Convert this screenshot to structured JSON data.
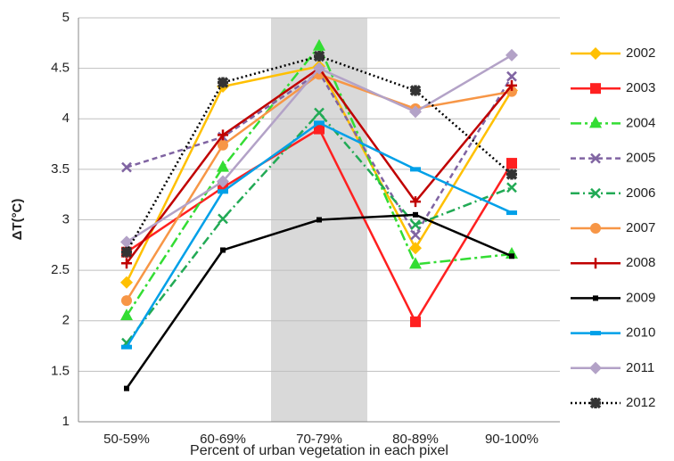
{
  "chart_data": {
    "type": "line",
    "x_label": "Percent of urban vegetation in each pixel",
    "y_label": "ΔT(°C)",
    "categories": [
      "50-59%",
      "60-69%",
      "70-79%",
      "80-89%",
      "90-100%"
    ],
    "highlight_index": 2,
    "ylim": [
      1,
      5
    ],
    "yticks": [
      1,
      1.5,
      2,
      2.5,
      3,
      3.5,
      4,
      4.5,
      5
    ],
    "grid": true,
    "legend": "right",
    "series": [
      {
        "name": "2002",
        "color": "#FFC000",
        "marker": "diamond",
        "dash": "",
        "values": [
          2.38,
          4.32,
          4.52,
          2.72,
          4.28
        ]
      },
      {
        "name": "2003",
        "color": "#FF2020",
        "marker": "square",
        "dash": "",
        "values": [
          2.68,
          3.32,
          3.9,
          1.99,
          3.56
        ]
      },
      {
        "name": "2004",
        "color": "#33DD33",
        "marker": "triangle",
        "dash": "12 4 3 4",
        "values": [
          2.05,
          3.52,
          4.72,
          2.56,
          2.66
        ]
      },
      {
        "name": "2005",
        "color": "#8064A2",
        "marker": "x",
        "dash": "6 4",
        "values": [
          3.52,
          3.82,
          4.46,
          2.85,
          4.42
        ]
      },
      {
        "name": "2006",
        "color": "#22AA55",
        "marker": "x",
        "dash": "10 4 2 4",
        "values": [
          1.78,
          3.01,
          4.06,
          2.95,
          3.32
        ]
      },
      {
        "name": "2007",
        "color": "#F79646",
        "marker": "circle",
        "dash": "",
        "values": [
          2.2,
          3.74,
          4.44,
          4.1,
          4.27
        ]
      },
      {
        "name": "2008",
        "color": "#C00000",
        "marker": "plus",
        "dash": "",
        "values": [
          2.57,
          3.84,
          4.5,
          3.18,
          4.33
        ]
      },
      {
        "name": "2009",
        "color": "#000000",
        "marker": "smallsquare",
        "dash": "",
        "values": [
          1.33,
          2.7,
          3.0,
          3.05,
          2.64
        ]
      },
      {
        "name": "2010",
        "color": "#00A0E8",
        "marker": "dash",
        "dash": "",
        "values": [
          1.74,
          3.28,
          3.96,
          3.5,
          3.07
        ]
      },
      {
        "name": "2011",
        "color": "#B3A2C7",
        "marker": "diamond",
        "dash": "",
        "values": [
          2.78,
          3.38,
          4.5,
          4.07,
          4.63
        ]
      },
      {
        "name": "2012",
        "color": "#000000",
        "marker": "star",
        "dash": "2 3",
        "values": [
          2.68,
          4.36,
          4.62,
          4.28,
          3.45
        ]
      }
    ]
  }
}
